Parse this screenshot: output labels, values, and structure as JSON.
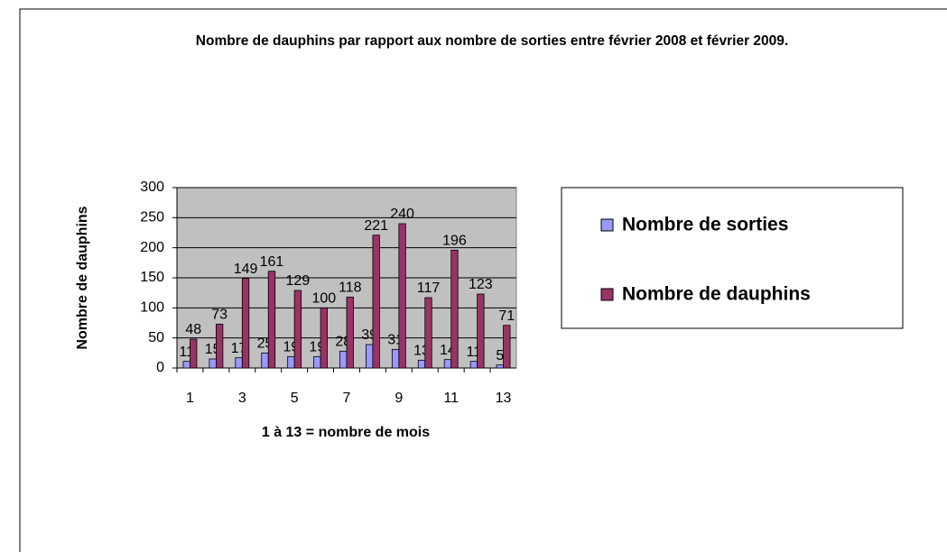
{
  "chart_data": {
    "type": "bar",
    "title": "Nombre de dauphins par rapport aux nombre de sorties entre février 2008 et février 2009.",
    "x_label": "1 à 13 = nombre de mois",
    "y_label": "Nombre de dauphins",
    "categories": [
      1,
      null,
      3,
      null,
      5,
      null,
      7,
      null,
      9,
      null,
      11,
      null,
      13
    ],
    "series": [
      {
        "name": "Nombre de sorties",
        "color": "#9999ff",
        "values": [
          11,
          15,
          17,
          25,
          19,
          19,
          28,
          39,
          31,
          13,
          14,
          11,
          5
        ]
      },
      {
        "name": "Nombre de dauphins",
        "color": "#993366",
        "values": [
          48,
          73,
          149,
          161,
          129,
          100,
          118,
          221,
          240,
          117,
          196,
          123,
          71
        ]
      }
    ],
    "ylim": [
      0,
      300
    ],
    "yticks": [
      0,
      50,
      100,
      150,
      200,
      250,
      300
    ],
    "grid": true,
    "legend": "right"
  }
}
